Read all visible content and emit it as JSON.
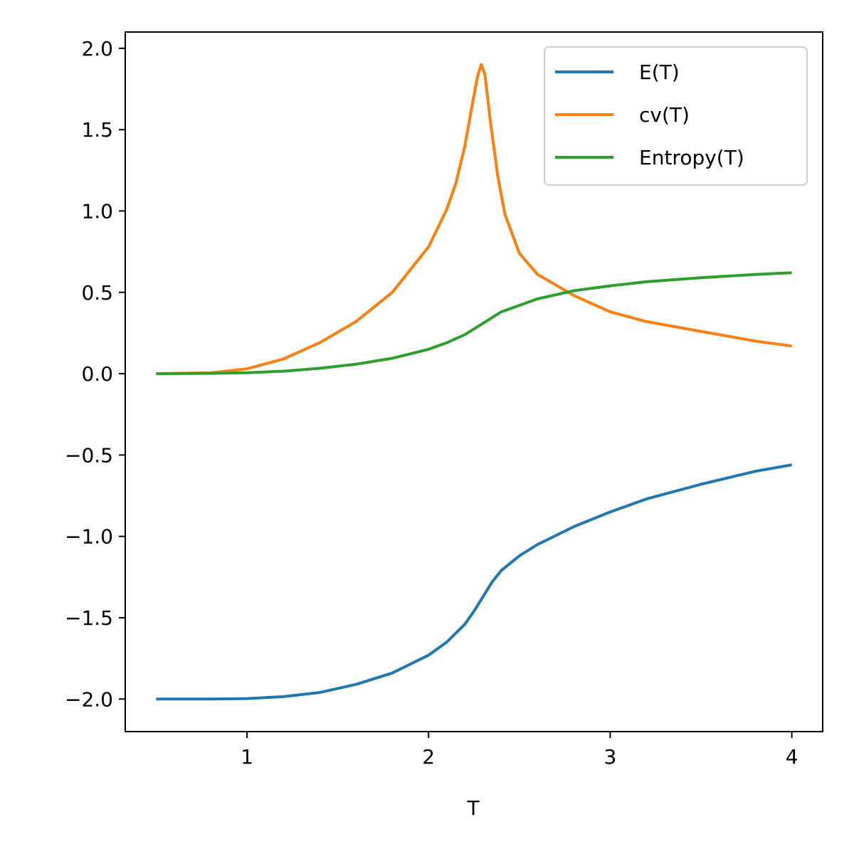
{
  "chart_data": {
    "type": "line",
    "title": "",
    "xlabel": "T",
    "ylabel": "",
    "xlim": [
      0.33,
      4.17
    ],
    "ylim": [
      -2.2,
      2.1
    ],
    "xticks": [
      1,
      2,
      3,
      4
    ],
    "xtick_labels": [
      "1",
      "2",
      "3",
      "4"
    ],
    "yticks": [
      -2.0,
      -1.5,
      -1.0,
      -0.5,
      0.0,
      0.5,
      1.0,
      1.5,
      2.0
    ],
    "ytick_labels": [
      "−2.0",
      "−1.5",
      "−1.0",
      "−0.5",
      "0.0",
      "0.5",
      "1.0",
      "1.5",
      "2.0"
    ],
    "grid": false,
    "legend_position": "top-right",
    "series": [
      {
        "name": "E(T)",
        "color": "#1f77b4",
        "x": [
          0.5,
          0.8,
          1.0,
          1.2,
          1.4,
          1.6,
          1.8,
          2.0,
          2.1,
          2.2,
          2.25,
          2.3,
          2.35,
          2.4,
          2.5,
          2.6,
          2.8,
          3.0,
          3.2,
          3.5,
          3.8,
          4.0
        ],
        "y": [
          -2.0,
          -2.0,
          -1.997,
          -1.985,
          -1.96,
          -1.91,
          -1.84,
          -1.73,
          -1.65,
          -1.54,
          -1.46,
          -1.37,
          -1.28,
          -1.21,
          -1.12,
          -1.05,
          -0.94,
          -0.85,
          -0.77,
          -0.68,
          -0.6,
          -0.56
        ]
      },
      {
        "name": "cv(T)",
        "color": "#ff7f0e",
        "x": [
          0.5,
          0.8,
          1.0,
          1.2,
          1.4,
          1.6,
          1.8,
          2.0,
          2.1,
          2.15,
          2.2,
          2.24,
          2.27,
          2.29,
          2.31,
          2.34,
          2.38,
          2.42,
          2.5,
          2.6,
          2.8,
          3.0,
          3.2,
          3.5,
          3.8,
          4.0
        ],
        "y": [
          0.0,
          0.005,
          0.03,
          0.09,
          0.19,
          0.32,
          0.5,
          0.78,
          1.01,
          1.17,
          1.4,
          1.65,
          1.83,
          1.9,
          1.84,
          1.55,
          1.22,
          0.98,
          0.74,
          0.61,
          0.48,
          0.38,
          0.32,
          0.26,
          0.2,
          0.17
        ]
      },
      {
        "name": "Entropy(T)",
        "color": "#2ca02c",
        "x": [
          0.5,
          0.8,
          1.0,
          1.2,
          1.4,
          1.6,
          1.8,
          2.0,
          2.1,
          2.2,
          2.3,
          2.4,
          2.5,
          2.6,
          2.8,
          3.0,
          3.2,
          3.5,
          3.8,
          4.0
        ],
        "y": [
          0.0,
          0.002,
          0.006,
          0.015,
          0.033,
          0.058,
          0.095,
          0.15,
          0.19,
          0.24,
          0.31,
          0.38,
          0.42,
          0.46,
          0.51,
          0.54,
          0.565,
          0.59,
          0.61,
          0.62
        ]
      }
    ]
  }
}
